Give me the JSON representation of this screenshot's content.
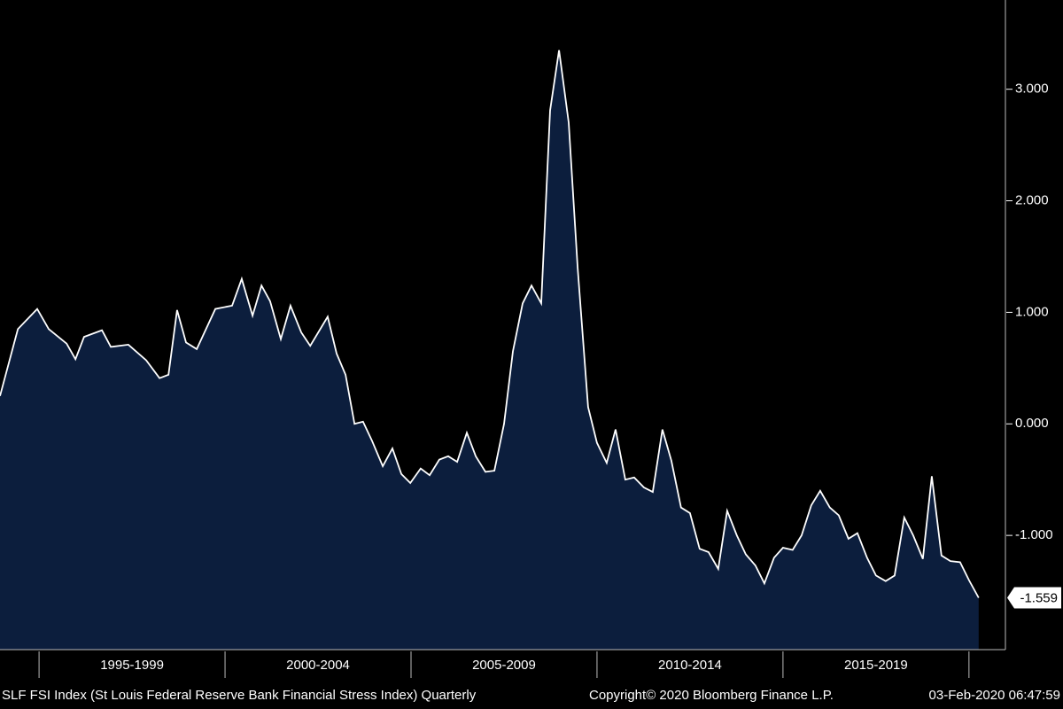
{
  "chart_data": {
    "type": "area",
    "series": [
      {
        "name": "SLF FSI Index",
        "color": "#0c1e3d",
        "line_color": "#ffffff",
        "x": [
          1993.95,
          1994.43,
          1994.95,
          1995.26,
          1995.74,
          1995.98,
          1996.21,
          1996.69,
          1996.93,
          1997.4,
          1997.88,
          1998.24,
          1998.48,
          1998.71,
          1998.95,
          1999.24,
          1999.74,
          2000.19,
          2000.45,
          2000.74,
          2000.98,
          2001.21,
          2001.5,
          2001.76,
          2002.05,
          2002.29,
          2002.76,
          2003.0,
          2003.24,
          2003.48,
          2003.71,
          2003.95,
          2004.24,
          2004.5,
          2004.74,
          2004.98,
          2005.26,
          2005.5,
          2005.76,
          2006.0,
          2006.24,
          2006.5,
          2006.74,
          2007.0,
          2007.24,
          2007.5,
          2007.74,
          2008.0,
          2008.24,
          2008.5,
          2008.74,
          2008.98,
          2009.24,
          2009.48,
          2009.76,
          2010.0,
          2010.26,
          2010.5,
          2010.76,
          2011.0,
          2011.26,
          2011.5,
          2011.76,
          2012.0,
          2012.26,
          2012.5,
          2012.76,
          2013.0,
          2013.26,
          2013.5,
          2013.76,
          2014.0,
          2014.26,
          2014.5,
          2014.76,
          2015.0,
          2015.26,
          2015.5,
          2015.76,
          2016.0,
          2016.26,
          2016.5,
          2016.76,
          2017.0,
          2017.26,
          2017.5,
          2017.76,
          2018.0,
          2018.26,
          2018.5,
          2018.76,
          2019.0,
          2019.26,
          2019.5,
          2019.76,
          2020.0,
          2020.26
        ],
        "values": [
          0.25,
          0.85,
          1.03,
          0.85,
          0.72,
          0.58,
          0.78,
          0.84,
          0.69,
          0.71,
          0.57,
          0.41,
          0.44,
          1.02,
          0.73,
          0.67,
          1.03,
          1.06,
          1.3,
          0.97,
          1.24,
          1.1,
          0.76,
          1.06,
          0.82,
          0.7,
          0.96,
          0.63,
          0.44,
          0.0,
          0.02,
          -0.15,
          -0.38,
          -0.22,
          -0.45,
          -0.53,
          -0.4,
          -0.46,
          -0.32,
          -0.29,
          -0.34,
          -0.08,
          -0.29,
          -0.43,
          -0.42,
          0.0,
          0.65,
          1.08,
          1.24,
          1.08,
          2.81,
          3.35,
          2.7,
          1.4,
          0.15,
          -0.17,
          -0.35,
          -0.05,
          -0.5,
          -0.48,
          -0.57,
          -0.61,
          -0.05,
          -0.33,
          -0.75,
          -0.8,
          -1.12,
          -1.15,
          -1.3,
          -0.78,
          -1.0,
          -1.17,
          -1.27,
          -1.43,
          -1.2,
          -1.11,
          -1.13,
          -1.0,
          -0.73,
          -0.6,
          -0.75,
          -0.82,
          -1.03,
          -0.98,
          -1.2,
          -1.36,
          -1.41,
          -1.36,
          -0.84,
          -1.0,
          -1.21,
          -0.47,
          -1.18,
          -1.23,
          -1.24,
          -1.4,
          -1.559
        ]
      }
    ],
    "xlim": [
      1993.95,
      2020.98
    ],
    "x_periods": {
      "labels": [
        "1995-1999",
        "2000-2004",
        "2005-2009",
        "2010-2014",
        "2015-2019"
      ],
      "bounds": [
        1995,
        2000,
        2005,
        2010,
        2015,
        2020
      ]
    },
    "ylim": [
      -2,
      3.8
    ],
    "yticks": [
      {
        "value": -1,
        "label": "-1.000"
      },
      {
        "value": 0,
        "label": "0.000"
      },
      {
        "value": 1,
        "label": "1.000"
      },
      {
        "value": 2,
        "label": "2.000"
      },
      {
        "value": 3,
        "label": "3.000"
      }
    ],
    "footer": {
      "description": "SLF FSI Index (St Louis Federal Reserve Bank Financial Stress Index)  Quarterly",
      "copyright": "Copyright© 2020 Bloomberg Finance L.P.",
      "timestamp": "03-Feb-2020 06:47:59"
    }
  }
}
